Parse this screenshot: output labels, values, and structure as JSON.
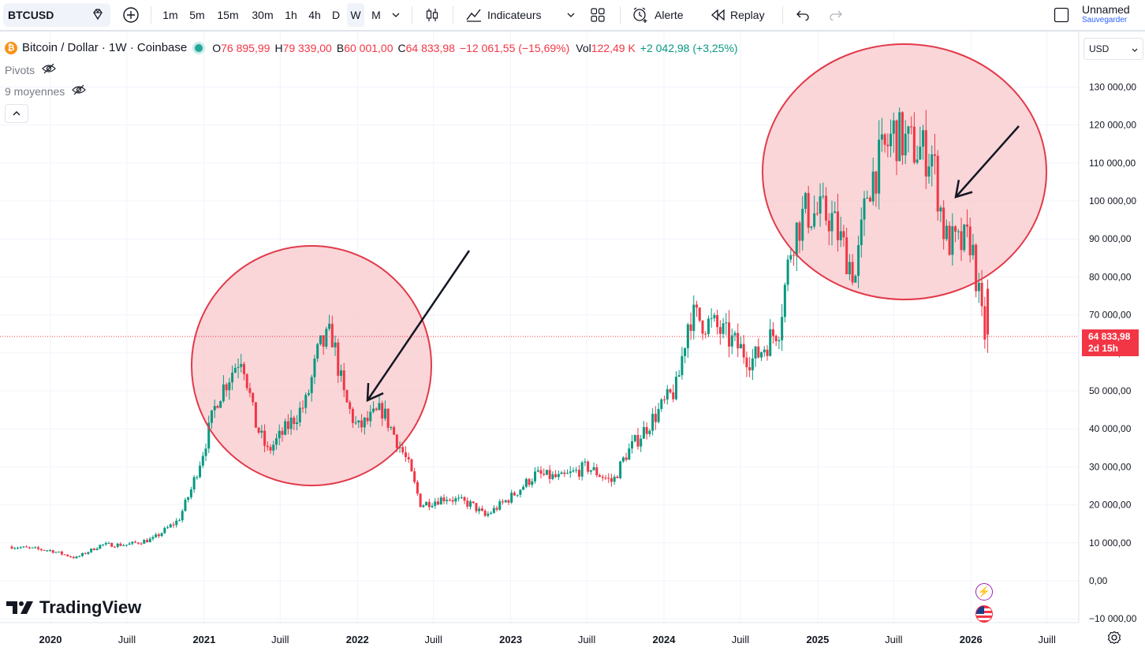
{
  "toolbar": {
    "symbol": "BTCUSD",
    "intervals": [
      "1m",
      "5m",
      "15m",
      "30m",
      "1h",
      "4h",
      "D",
      "W",
      "M"
    ],
    "active_interval": "W",
    "indicators_label": "Indicateurs",
    "alert_label": "Alerte",
    "replay_label": "Replay",
    "layout_name": "Unnamed",
    "save_label": "Sauvegarder"
  },
  "legend": {
    "title": "Bitcoin / Dollar · 1W · Coinbase",
    "o_label": "O",
    "o_value": "76 895,99",
    "h_label": "H",
    "h_value": "79 339,00",
    "b_label": "B",
    "b_value": "60 001,00",
    "c_label": "C",
    "c_value": "64 833,98",
    "change": "−12 061,55 (−15,69%)",
    "vol_label": "Vol",
    "vol_value": "122,49 K",
    "vol_change": "+2 042,98 (+3,25%)"
  },
  "indicators": {
    "pivots": "Pivots",
    "moyennes": "9 moyennes"
  },
  "currency": "USD",
  "last_price": {
    "value": "64 833,98",
    "countdown": "2d 15h"
  },
  "brand": "TradingView",
  "colors": {
    "up": "#089981",
    "down": "#f23645",
    "accent": "#2962ff",
    "circle_fill": "#f8c8cc",
    "circle_stroke": "#e23a4a"
  },
  "chart_data": {
    "type": "candlestick",
    "y_ticks": [
      "130 000,00",
      "120 000,00",
      "110 000,00",
      "100 000,00",
      "90 000,00",
      "80 000,00",
      "70 000,00",
      "60 000,00",
      "50 000,00",
      "40 000,00",
      "30 000,00",
      "20 000,00",
      "10 000,00",
      "0,00",
      "−10 000,00"
    ],
    "y_tick_values": [
      130000,
      120000,
      110000,
      100000,
      90000,
      80000,
      70000,
      60000,
      50000,
      40000,
      30000,
      20000,
      10000,
      0,
      -10000
    ],
    "x_ticks": [
      "2020",
      "Juill",
      "2021",
      "Juill",
      "2022",
      "Juill",
      "2023",
      "Juill",
      "2024",
      "Juill",
      "2025",
      "Juill",
      "2026",
      "Juill"
    ],
    "x_tick_dates": [
      "2020-01",
      "2020-07",
      "2021-01",
      "2021-07",
      "2022-01",
      "2022-07",
      "2023-01",
      "2023-07",
      "2024-01",
      "2024-07",
      "2025-01",
      "2025-07",
      "2026-01",
      "2026-07"
    ],
    "close_path": [
      [
        "2019-10",
        9000
      ],
      [
        "2020-01",
        8000
      ],
      [
        "2020-03",
        6000
      ],
      [
        "2020-05",
        9500
      ],
      [
        "2020-07",
        9500
      ],
      [
        "2020-09",
        11000
      ],
      [
        "2020-11",
        16000
      ],
      [
        "2020-12",
        24000
      ],
      [
        "2021-01",
        35000
      ],
      [
        "2021-02",
        48000
      ],
      [
        "2021-04",
        60000
      ],
      [
        "2021-05",
        42000
      ],
      [
        "2021-06",
        34000
      ],
      [
        "2021-07",
        38000
      ],
      [
        "2021-09",
        47000
      ],
      [
        "2021-10",
        61000
      ],
      [
        "2021-11",
        65000
      ],
      [
        "2021-12",
        48000
      ],
      [
        "2022-01",
        40000
      ],
      [
        "2022-03",
        45000
      ],
      [
        "2022-05",
        31000
      ],
      [
        "2022-06",
        20000
      ],
      [
        "2022-08",
        22000
      ],
      [
        "2022-10",
        20000
      ],
      [
        "2022-11",
        17000
      ],
      [
        "2023-01",
        22000
      ],
      [
        "2023-03",
        28000
      ],
      [
        "2023-05",
        27000
      ],
      [
        "2023-07",
        30000
      ],
      [
        "2023-09",
        26000
      ],
      [
        "2023-10",
        33000
      ],
      [
        "2023-12",
        42000
      ],
      [
        "2024-02",
        51000
      ],
      [
        "2024-03",
        70000
      ],
      [
        "2024-05",
        67000
      ],
      [
        "2024-08",
        58000
      ],
      [
        "2024-10",
        67000
      ],
      [
        "2024-11",
        90000
      ],
      [
        "2024-12",
        97000
      ],
      [
        "2025-02",
        96000
      ],
      [
        "2025-04",
        80000
      ],
      [
        "2025-05",
        104000
      ],
      [
        "2025-07",
        118000
      ],
      [
        "2025-08",
        115000
      ],
      [
        "2025-10",
        112000
      ],
      [
        "2025-11",
        90000
      ],
      [
        "2025-12",
        88000
      ],
      [
        "2026-01",
        90000
      ],
      [
        "2026-02",
        64834
      ]
    ],
    "last_close": 64833.98,
    "annotations": [
      {
        "type": "circle",
        "period": "2021-2022"
      },
      {
        "type": "arrow",
        "period": "2021-2022"
      },
      {
        "type": "circle",
        "period": "2024-2026"
      },
      {
        "type": "arrow",
        "period": "2024-2026"
      }
    ]
  }
}
